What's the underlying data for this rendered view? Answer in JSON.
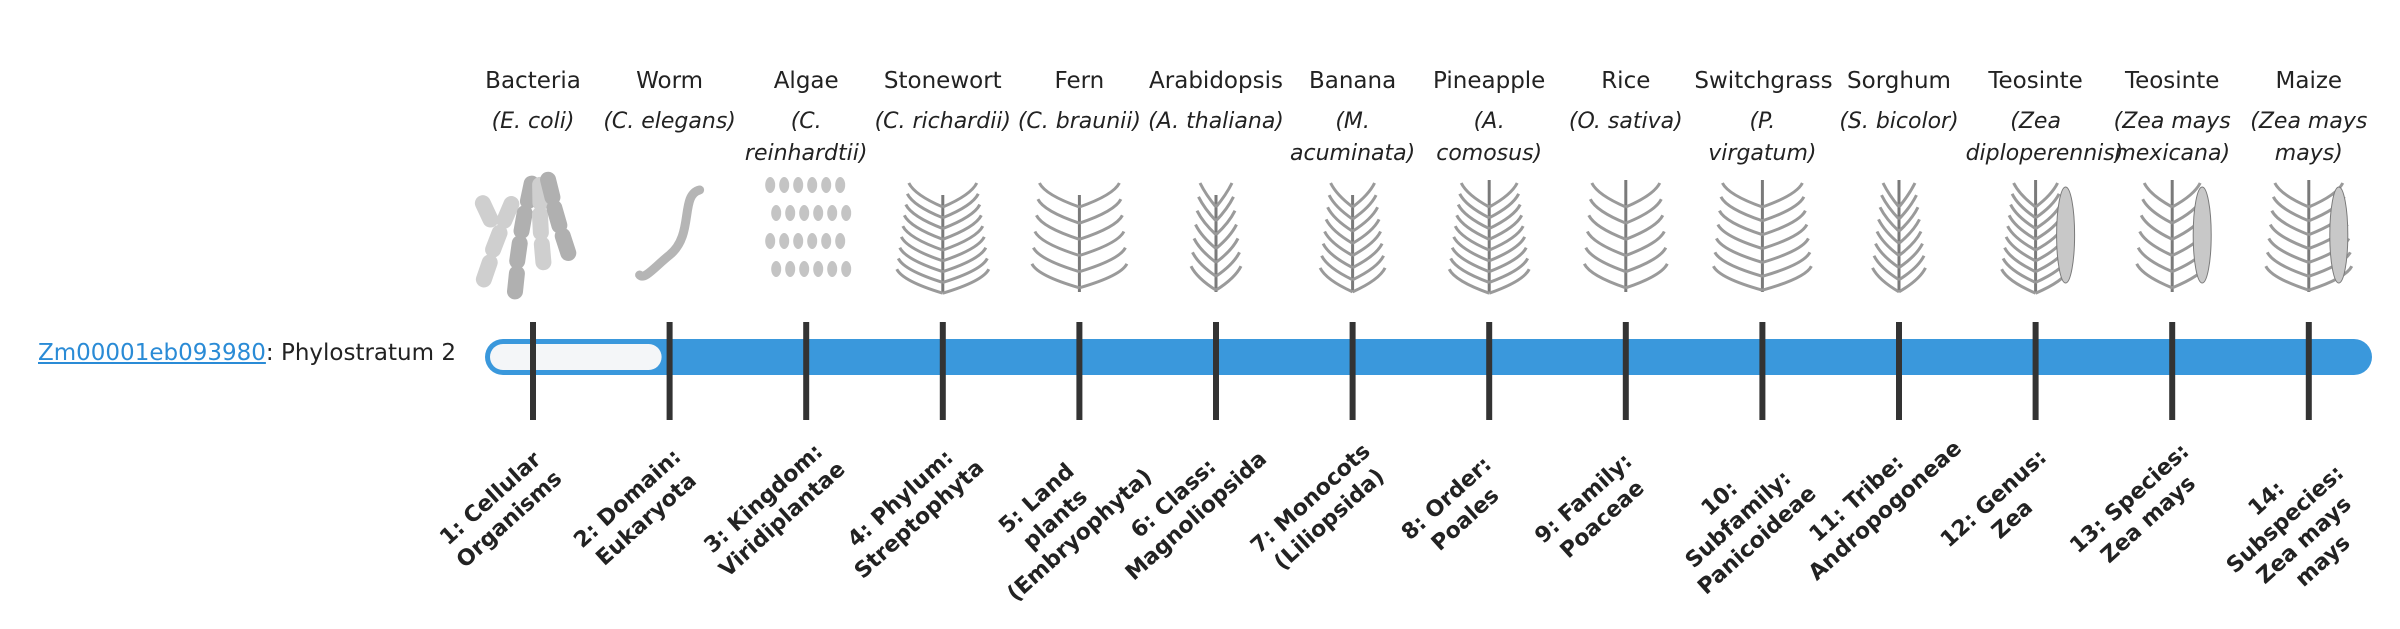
{
  "gene": "Zm00001eb093980",
  "gene_suffix": ": Phylostratum",
  "stratum": 2,
  "organisms": [
    {
      "name": "Bacteria",
      "species": "(E. coli)",
      "stratum": "1: Cellular Organisms"
    },
    {
      "name": "Worm",
      "species": "(C. elegans)",
      "stratum": "2: Domain: Eukaryota"
    },
    {
      "name": "Algae",
      "species": "(C. reinhardtii)",
      "stratum": "3: Kingdom: Viridiplantae"
    },
    {
      "name": "Stonewort",
      "species": "(C. richardii)",
      "stratum": "4: Phylum: Streptophyta"
    },
    {
      "name": "Fern",
      "species": "(C. braunii)",
      "stratum": "5: Land plants (Embryophyta)"
    },
    {
      "name": "Arabidopsis",
      "species": "(A. thaliana)",
      "stratum": "6: Class: Magnoliopsida"
    },
    {
      "name": "Banana",
      "species": "(M. acuminata)",
      "stratum": "7: Monocots (Liliopsida)"
    },
    {
      "name": "Pineapple",
      "species": "(A. comosus)",
      "stratum": "8: Order: Poales"
    },
    {
      "name": "Rice",
      "species": "(O. sativa)",
      "stratum": "9: Family: Poaceae"
    },
    {
      "name": "Switchgrass",
      "species": "(P. virgatum)",
      "stratum": "10: Subfamily: Panicoideae"
    },
    {
      "name": "Sorghum",
      "species": "(S. bicolor)",
      "stratum": "11: Tribe: Andropogoneae"
    },
    {
      "name": "Teosinte",
      "species": "(Zea diploperennis)",
      "stratum": "12: Genus: Zea"
    },
    {
      "name": "Teosinte",
      "species": "(Zea mays mexicana)",
      "stratum": "13: Species: Zea mays"
    },
    {
      "name": "Maize",
      "species": "(Zea mays mays)",
      "stratum": "14: Subspecies: Zea mays mays"
    }
  ]
}
